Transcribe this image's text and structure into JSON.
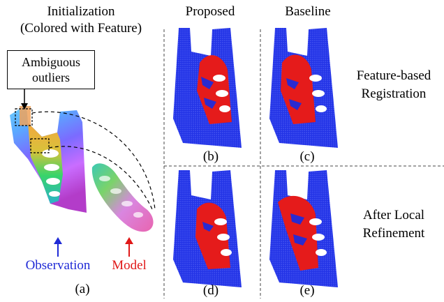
{
  "panel_a": {
    "title_line1": "Initialization",
    "title_line2": "(Colored with Feature)",
    "callout_line1": "Ambiguous",
    "callout_line2": "outliers",
    "observation_label": "Observation",
    "model_label": "Model",
    "label": "(a)"
  },
  "columns": {
    "proposed": "Proposed",
    "baseline": "Baseline"
  },
  "rows": {
    "row1_line1": "Feature-based",
    "row1_line2": "Registration",
    "row2_line1": "After Local",
    "row2_line2": "Refinement"
  },
  "panel_labels": {
    "b": "(b)",
    "c": "(c)",
    "d": "(d)",
    "e": "(e)"
  },
  "colors": {
    "observation": "#1f2ad6",
    "model": "#e01818",
    "point_blue": "#1a2fe0"
  }
}
